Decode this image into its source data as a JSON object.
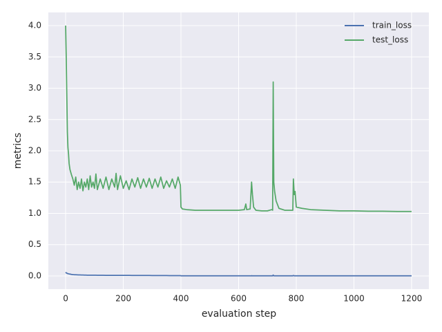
{
  "chart_data": {
    "type": "line",
    "xlabel": "evaluation step",
    "ylabel": "metrics",
    "x": [
      0,
      2,
      4,
      6,
      8,
      10,
      12,
      15,
      20,
      25,
      30,
      35,
      40,
      45,
      50,
      55,
      60,
      65,
      70,
      75,
      80,
      85,
      90,
      95,
      100,
      105,
      110,
      120,
      130,
      140,
      150,
      160,
      170,
      175,
      180,
      190,
      200,
      210,
      220,
      230,
      240,
      250,
      260,
      270,
      280,
      290,
      300,
      310,
      320,
      330,
      340,
      350,
      360,
      370,
      380,
      390,
      398,
      400,
      405,
      420,
      450,
      500,
      550,
      600,
      620,
      625,
      628,
      640,
      645,
      648,
      652,
      660,
      680,
      700,
      715,
      718,
      720,
      722,
      725,
      730,
      740,
      760,
      780,
      788,
      790,
      793,
      796,
      800,
      820,
      850,
      900,
      950,
      1000,
      1050,
      1100,
      1150,
      1200
    ],
    "series": [
      {
        "name": "train_loss",
        "color": "#4c72b0",
        "values": [
          0.06,
          0.05,
          0.045,
          0.04,
          0.037,
          0.035,
          0.032,
          0.03,
          0.025,
          0.022,
          0.02,
          0.019,
          0.018,
          0.017,
          0.016,
          0.015,
          0.015,
          0.014,
          0.014,
          0.013,
          0.013,
          0.013,
          0.012,
          0.012,
          0.012,
          0.012,
          0.011,
          0.011,
          0.011,
          0.01,
          0.01,
          0.01,
          0.01,
          0.01,
          0.009,
          0.009,
          0.009,
          0.009,
          0.009,
          0.008,
          0.008,
          0.008,
          0.008,
          0.008,
          0.008,
          0.008,
          0.007,
          0.007,
          0.007,
          0.007,
          0.007,
          0.007,
          0.006,
          0.006,
          0.006,
          0.006,
          0.006,
          0.003,
          0.002,
          0.002,
          0.002,
          0.002,
          0.002,
          0.002,
          0.002,
          0.002,
          0.002,
          0.002,
          0.004,
          0.003,
          0.002,
          0.002,
          0.002,
          0.002,
          0.002,
          0.002,
          0.015,
          0.004,
          0.003,
          0.002,
          0.002,
          0.002,
          0.002,
          0.002,
          0.008,
          0.003,
          0.003,
          0.002,
          0.002,
          0.002,
          0.002,
          0.002,
          0.002,
          0.002,
          0.002,
          0.002,
          0.002
        ]
      },
      {
        "name": "test_loss",
        "color": "#55a868",
        "values": [
          4.0,
          3.5,
          2.9,
          2.3,
          2.05,
          1.95,
          1.8,
          1.7,
          1.62,
          1.55,
          1.45,
          1.58,
          1.38,
          1.5,
          1.4,
          1.55,
          1.36,
          1.5,
          1.42,
          1.55,
          1.38,
          1.6,
          1.42,
          1.5,
          1.4,
          1.63,
          1.38,
          1.55,
          1.4,
          1.58,
          1.38,
          1.55,
          1.42,
          1.64,
          1.38,
          1.6,
          1.4,
          1.52,
          1.38,
          1.55,
          1.42,
          1.57,
          1.4,
          1.55,
          1.42,
          1.56,
          1.4,
          1.55,
          1.42,
          1.58,
          1.4,
          1.52,
          1.42,
          1.55,
          1.4,
          1.58,
          1.45,
          1.1,
          1.07,
          1.06,
          1.05,
          1.05,
          1.05,
          1.05,
          1.06,
          1.15,
          1.06,
          1.07,
          1.5,
          1.3,
          1.1,
          1.05,
          1.04,
          1.04,
          1.06,
          1.05,
          3.1,
          1.5,
          1.35,
          1.2,
          1.08,
          1.05,
          1.05,
          1.05,
          1.55,
          1.3,
          1.35,
          1.1,
          1.08,
          1.06,
          1.05,
          1.04,
          1.04,
          1.035,
          1.035,
          1.03,
          1.03
        ]
      }
    ],
    "xlim": [
      -60,
      1260
    ],
    "xticks": [
      0,
      200,
      400,
      600,
      800,
      1000,
      1200
    ],
    "ylim": [
      -0.21,
      4.21
    ],
    "yticks": [
      {
        "value": 0,
        "label": "0.0"
      },
      {
        "value": 0.5,
        "label": "0.5"
      },
      {
        "value": 1,
        "label": "1.0"
      },
      {
        "value": 1.5,
        "label": "1.5"
      },
      {
        "value": 2,
        "label": "2.0"
      },
      {
        "value": 2.5,
        "label": "2.5"
      },
      {
        "value": 3,
        "label": "3.0"
      },
      {
        "value": 3.5,
        "label": "3.5"
      },
      {
        "value": 4,
        "label": "4.0"
      }
    ],
    "grid": true,
    "legend": "upper right"
  }
}
